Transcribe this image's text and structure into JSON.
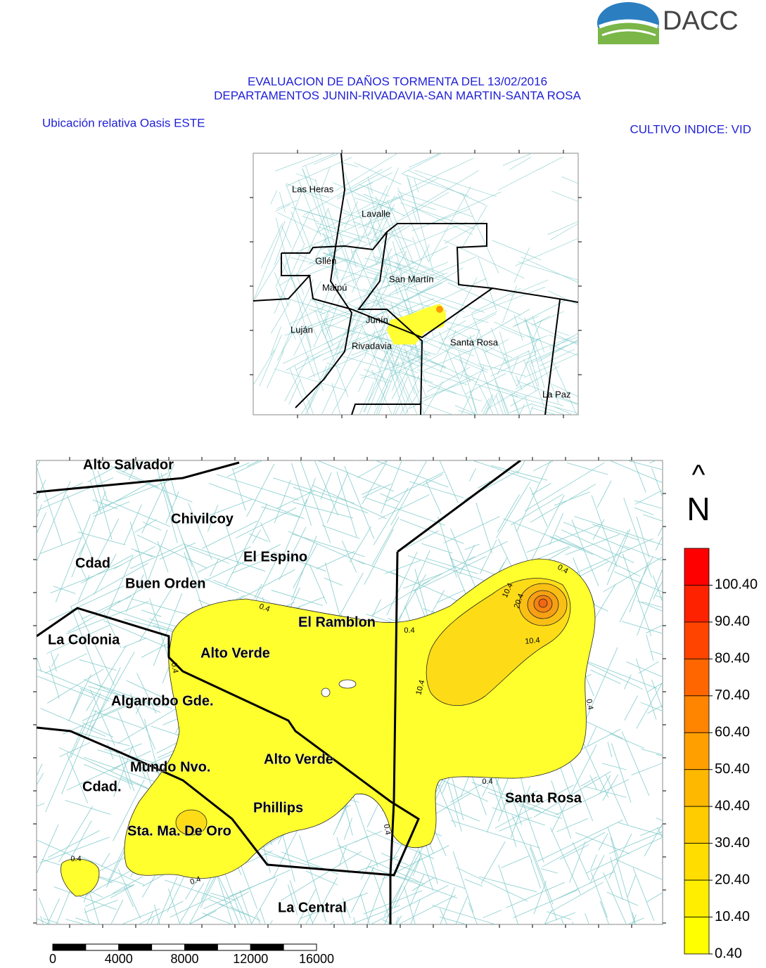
{
  "header": {
    "logo": "DACC",
    "title_lines": [
      "EVALUACION DE DAÑOS TORMENTA DEL 13/02/2016",
      "DEPARTAMENTOS JUNIN-RIVADAVIA-SAN MARTIN-SANTA ROSA"
    ],
    "subtitle_left": "Ubicación relativa Oasis ESTE",
    "subtitle_right": "CULTIVO INDICE: VID"
  },
  "inset_map": {
    "labels": [
      "Las Heras",
      "Lavalle",
      "Gllén",
      "Maipú",
      "San Martín",
      "Junín",
      "Luján",
      "Rivadavia",
      "Santa Rosa",
      "La Paz"
    ]
  },
  "main_map": {
    "labels": [
      "Alto Salvador",
      "Chivilcoy",
      "Cdad",
      "El Espino",
      "Buen Orden",
      "El Ramblon",
      "La Colonia",
      "Alto Verde",
      "Algarrobo Gde.",
      "Alto Verde",
      "Mundo Nvo.",
      "Cdad.",
      "Santa Rosa",
      "Phillips",
      "Sta. Ma. De Oro",
      "La Central"
    ],
    "contour_labels": [
      "0.4",
      "10.4",
      "20.4",
      "0.4",
      "0.4",
      "10.4",
      "0.4",
      "10.4",
      "0.4",
      "0.4",
      "0.4",
      "0.4",
      "0.4"
    ]
  },
  "north": {
    "arrow": "^",
    "letter": "N"
  },
  "legend": {
    "labels": [
      "100.40",
      "90.40",
      "80.40",
      "70.40",
      "60.40",
      "50.40",
      "40.40",
      "30.40",
      "20.40",
      "10.40",
      "0.40"
    ],
    "colors": [
      "#ff0000",
      "#ff2200",
      "#ff4400",
      "#ff6600",
      "#ff8400",
      "#ffa000",
      "#ffb800",
      "#ffcc00",
      "#ffdd00",
      "#ffee00",
      "#ffff00"
    ]
  },
  "scale_bar": {
    "labels": [
      "0",
      "4000",
      "8000",
      "12000",
      "16000"
    ]
  }
}
